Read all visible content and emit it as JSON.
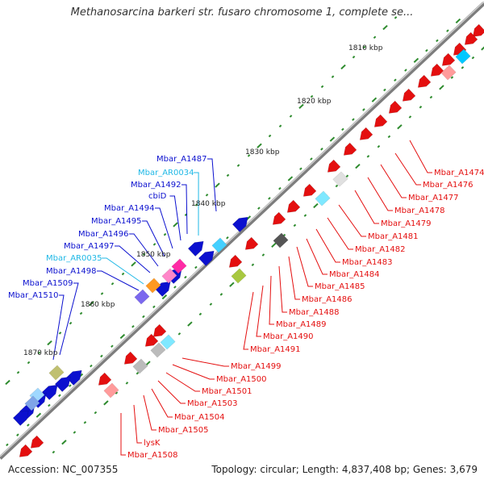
{
  "title": "Methanosarcina barkeri str. fusaro chromosome 1, complete se...",
  "accession": "Accession: NC_007355",
  "summary": "Topology: circular; Length: 4,837,408 bp; Genes: 3,679",
  "colors": {
    "backbone": "#8c8c8c",
    "forward_gene": "#0b10cf",
    "reverse_gene": "#e40f0f",
    "rna_label": "#1fb8e6",
    "protein_label_forward": "#0b10cf",
    "protein_label_reverse": "#e40f0f",
    "tick": "#2e8b2e"
  },
  "scale_labels": [
    "1810 kbp",
    "1820 kbp",
    "1830 kbp",
    "1840 kbp",
    "1850 kbp",
    "1860 kbp",
    "1870 kbp"
  ],
  "forward_labels": [
    {
      "text": "Mbar_A1487",
      "type": "gene"
    },
    {
      "text": "Mbar_AR0034",
      "type": "rna"
    },
    {
      "text": "Mbar_A1492",
      "type": "gene"
    },
    {
      "text": "cbiD",
      "type": "gene"
    },
    {
      "text": "Mbar_A1494",
      "type": "gene"
    },
    {
      "text": "Mbar_A1495",
      "type": "gene"
    },
    {
      "text": "Mbar_A1496",
      "type": "gene"
    },
    {
      "text": "Mbar_A1497",
      "type": "gene"
    },
    {
      "text": "Mbar_AR0035",
      "type": "rna"
    },
    {
      "text": "Mbar_A1498",
      "type": "gene"
    },
    {
      "text": "Mbar_A1509",
      "type": "gene"
    },
    {
      "text": "Mbar_A1510",
      "type": "gene"
    }
  ],
  "reverse_labels": [
    {
      "text": "Mbar_A1474"
    },
    {
      "text": "Mbar_A1476"
    },
    {
      "text": "Mbar_A1477"
    },
    {
      "text": "Mbar_A1478"
    },
    {
      "text": "Mbar_A1479"
    },
    {
      "text": "Mbar_A1481"
    },
    {
      "text": "Mbar_A1482"
    },
    {
      "text": "Mbar_A1483"
    },
    {
      "text": "Mbar_A1484"
    },
    {
      "text": "Mbar_A1485"
    },
    {
      "text": "Mbar_A1486"
    },
    {
      "text": "Mbar_A1488"
    },
    {
      "text": "Mbar_A1489"
    },
    {
      "text": "Mbar_A1490"
    },
    {
      "text": "Mbar_A1491"
    },
    {
      "text": "Mbar_A1499"
    },
    {
      "text": "Mbar_A1500"
    },
    {
      "text": "Mbar_A1501"
    },
    {
      "text": "Mbar_A1503"
    },
    {
      "text": "Mbar_A1504"
    },
    {
      "text": "Mbar_A1505"
    },
    {
      "text": "lysK"
    },
    {
      "text": "Mbar_A1508"
    }
  ]
}
